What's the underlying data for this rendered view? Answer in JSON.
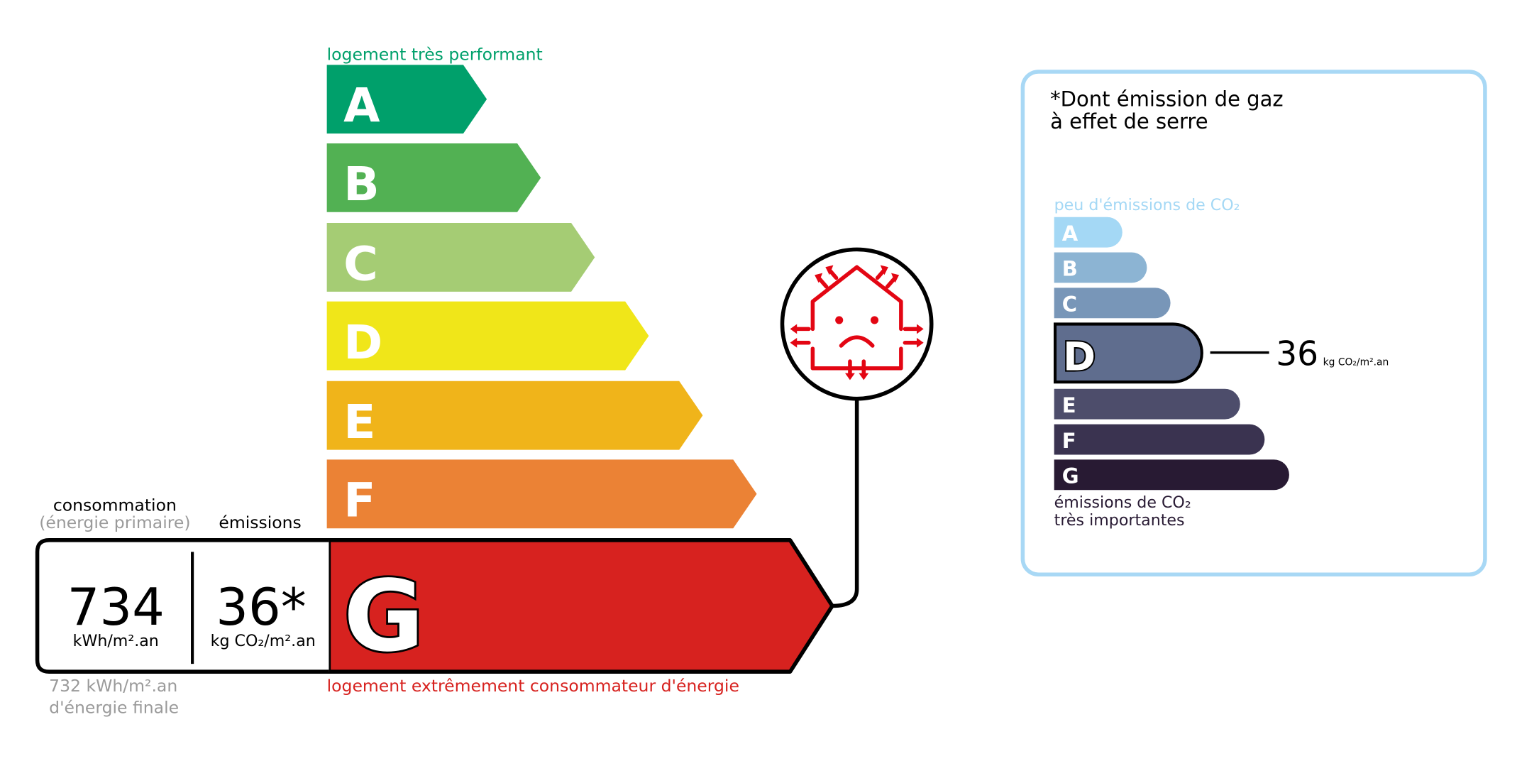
{
  "energy_label": {
    "top_caption": "logement très performant",
    "bottom_caption": "logement extrêmement consommateur d'énergie",
    "classes": [
      {
        "letter": "A",
        "color": "#00a06b"
      },
      {
        "letter": "B",
        "color": "#52b153"
      },
      {
        "letter": "C",
        "color": "#a5cc74"
      },
      {
        "letter": "D",
        "color": "#f0e619"
      },
      {
        "letter": "E",
        "color": "#f0b41a"
      },
      {
        "letter": "F",
        "color": "#eb8235"
      },
      {
        "letter": "G",
        "color": "#d7221f"
      }
    ],
    "current_class": "G",
    "icon": "house-heat-loss-sad-icon",
    "consumption_label": "consommation",
    "consumption_sublabel": "(énergie primaire)",
    "emissions_label": "émissions",
    "consumption_value": "734",
    "consumption_unit": "kWh/m².an",
    "emissions_value": "36*",
    "emissions_unit": "kg CO₂/m².an",
    "final_energy_line1": "732 kWh/m².an",
    "final_energy_line2": "d'énergie finale"
  },
  "ghg_label": {
    "title_line1": "*Dont émission de gaz",
    "title_line2": "à effet de serre",
    "top_caption": "peu d'émissions de CO₂",
    "bottom_caption_line1": "émissions de CO₂",
    "bottom_caption_line2": "très importantes",
    "classes": [
      {
        "letter": "A",
        "color": "#a4d8f5"
      },
      {
        "letter": "B",
        "color": "#8cb4d3"
      },
      {
        "letter": "C",
        "color": "#7896b8"
      },
      {
        "letter": "D",
        "color": "#5f6d8e"
      },
      {
        "letter": "E",
        "color": "#4d4d6b"
      },
      {
        "letter": "F",
        "color": "#3a3350"
      },
      {
        "letter": "G",
        "color": "#281a33"
      }
    ],
    "current_class": "D",
    "value": "36",
    "unit": "kg CO₂/m².an",
    "border_color": "#a8d8f5"
  }
}
